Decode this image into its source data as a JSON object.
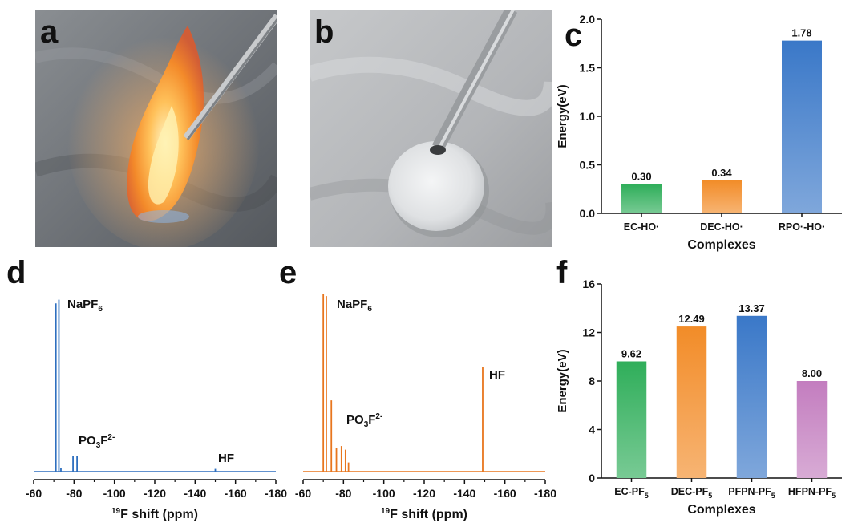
{
  "panels": {
    "a": "a",
    "b": "b",
    "c": "c",
    "d": "d",
    "e": "e",
    "f": "f"
  },
  "chart_data": [
    {
      "panel": "c",
      "type": "bar",
      "categories": [
        "EC-HO·",
        "DEC-HO·",
        "RPO·-HO·"
      ],
      "values": [
        0.3,
        0.34,
        1.78
      ],
      "value_labels": [
        "0.30",
        "0.34",
        "1.78"
      ],
      "xlabel": "Complexes",
      "ylabel": "Energy(eV)",
      "ylim": [
        0,
        2.0
      ],
      "yticks": [
        "0.0",
        "0.5",
        "1.0",
        "1.5",
        "2.0"
      ],
      "colors": [
        "#2fae5a",
        "#f28c28",
        "#3a78c8"
      ]
    },
    {
      "panel": "f",
      "type": "bar",
      "categories": [
        "EC-PF5",
        "DEC-PF5",
        "PFPN-PF5",
        "HFPN-PF5"
      ],
      "category_labels": [
        {
          "main": "EC-PF",
          "sub": "5"
        },
        {
          "main": "DEC-PF",
          "sub": "5"
        },
        {
          "main": "PFPN-PF",
          "sub": "5"
        },
        {
          "main": "HFPN-PF",
          "sub": "5"
        }
      ],
      "values": [
        9.62,
        12.49,
        13.37,
        8.0
      ],
      "value_labels": [
        "9.62",
        "12.49",
        "13.37",
        "8.00"
      ],
      "xlabel": "Complexes",
      "ylabel": "Energy(eV)",
      "ylim": [
        0,
        16
      ],
      "yticks": [
        "0",
        "4",
        "8",
        "12",
        "16"
      ],
      "colors": [
        "#2fae5a",
        "#f28c28",
        "#3a78c8",
        "#c37dbf"
      ]
    },
    {
      "panel": "d",
      "type": "line",
      "xlabel_sup": "19",
      "xlabel": "F shift (ppm)",
      "xlim": [
        -60,
        -180
      ],
      "xticks": [
        "-60",
        "-80",
        "-100",
        "-120",
        "-140",
        "-160",
        "-180"
      ],
      "color": "#2e6fbf",
      "peaks": [
        {
          "x": -71.0,
          "h": 0.92
        },
        {
          "x": -72.5,
          "h": 0.94
        },
        {
          "x": -73.5,
          "h": 0.02
        },
        {
          "x": -79.5,
          "h": 0.085
        },
        {
          "x": -81.5,
          "h": 0.085
        },
        {
          "x": -150.0,
          "h": 0.015
        }
      ],
      "annotations": [
        {
          "text": "NaPF",
          "sub": "6",
          "sup": ""
        },
        {
          "text": "PO",
          "sub": "3",
          "sup": "2-",
          "mid": "F"
        },
        {
          "text": "HF",
          "sub": "",
          "sup": ""
        }
      ]
    },
    {
      "panel": "e",
      "type": "line",
      "xlabel_sup": "19",
      "xlabel": "F shift (ppm)",
      "xlim": [
        -60,
        -180
      ],
      "xticks": [
        "-60",
        "-80",
        "-100",
        "-120",
        "-140",
        "-160",
        "-180"
      ],
      "color": "#e8761e",
      "peaks": [
        {
          "x": -70.0,
          "h": 0.97
        },
        {
          "x": -71.5,
          "h": 0.96
        },
        {
          "x": -74.0,
          "h": 0.39
        },
        {
          "x": -76.5,
          "h": 0.13
        },
        {
          "x": -79.0,
          "h": 0.14
        },
        {
          "x": -81.0,
          "h": 0.12
        },
        {
          "x": -82.5,
          "h": 0.05
        },
        {
          "x": -149.0,
          "h": 0.57
        }
      ],
      "annotations": [
        {
          "text": "NaPF",
          "sub": "6",
          "sup": ""
        },
        {
          "text": "PO",
          "sub": "3",
          "sup": "2-",
          "mid": "F"
        },
        {
          "text": "HF",
          "sub": "",
          "sup": ""
        }
      ]
    }
  ]
}
